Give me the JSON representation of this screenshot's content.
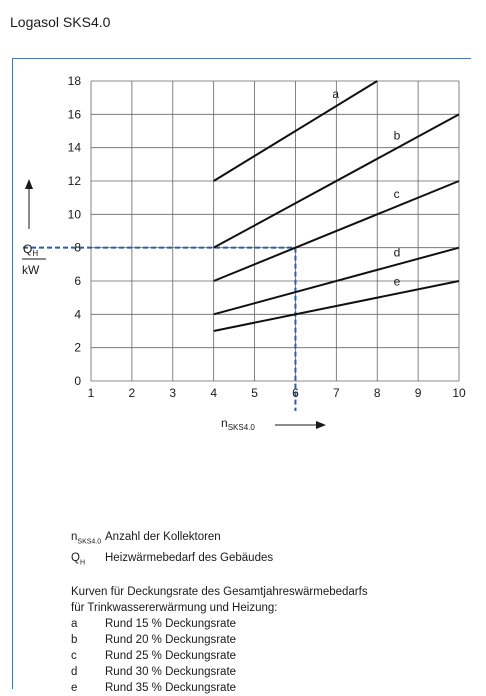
{
  "title": "Logasol SKS4.0",
  "chart_data": {
    "type": "line",
    "x_axis": {
      "range": [
        1,
        10
      ],
      "ticks": [
        1,
        2,
        3,
        4,
        5,
        6,
        7,
        8,
        9,
        10
      ],
      "label_main": "n",
      "label_sub": "SKS4.0"
    },
    "y_axis": {
      "range": [
        0,
        18
      ],
      "ticks": [
        0,
        2,
        4,
        6,
        8,
        10,
        12,
        14,
        16,
        18
      ],
      "label_main": "Q",
      "label_sub": "H",
      "unit": "kW"
    },
    "grid": true,
    "series": [
      {
        "name": "a",
        "points": [
          [
            4,
            12
          ],
          [
            8,
            18
          ]
        ]
      },
      {
        "name": "b",
        "points": [
          [
            4,
            8
          ],
          [
            10,
            16
          ]
        ]
      },
      {
        "name": "c",
        "points": [
          [
            4,
            6
          ],
          [
            10,
            12
          ]
        ]
      },
      {
        "name": "d",
        "points": [
          [
            4,
            4
          ],
          [
            10,
            8
          ]
        ]
      },
      {
        "name": "e",
        "points": [
          [
            4,
            3
          ],
          [
            10,
            6
          ]
        ]
      }
    ],
    "reading_example": {
      "x": 6,
      "y": 8,
      "color": "#2a5db0"
    }
  },
  "legend": {
    "symbols": [
      {
        "main": "n",
        "sub": "SKS4.0",
        "text": "Anzahl der Kollektoren"
      },
      {
        "main": "Q",
        "sub": "H",
        "text": "Heizwärmebedarf des Gebäudes"
      }
    ],
    "curves_heading_1": "Kurven für Deckungsrate des Gesamtjahreswärmebedarfs",
    "curves_heading_2": "für Trinkwassererwärmung und Heizung:",
    "curves": [
      {
        "key": "a",
        "text": "Rund 15 % Deckungsrate"
      },
      {
        "key": "b",
        "text": "Rund 20 % Deckungsrate"
      },
      {
        "key": "c",
        "text": "Rund 25 % Deckungsrate"
      },
      {
        "key": "d",
        "text": "Rund 30 % Deckungsrate"
      },
      {
        "key": "e",
        "text": "Rund 35 % Deckungsrate"
      }
    ]
  }
}
